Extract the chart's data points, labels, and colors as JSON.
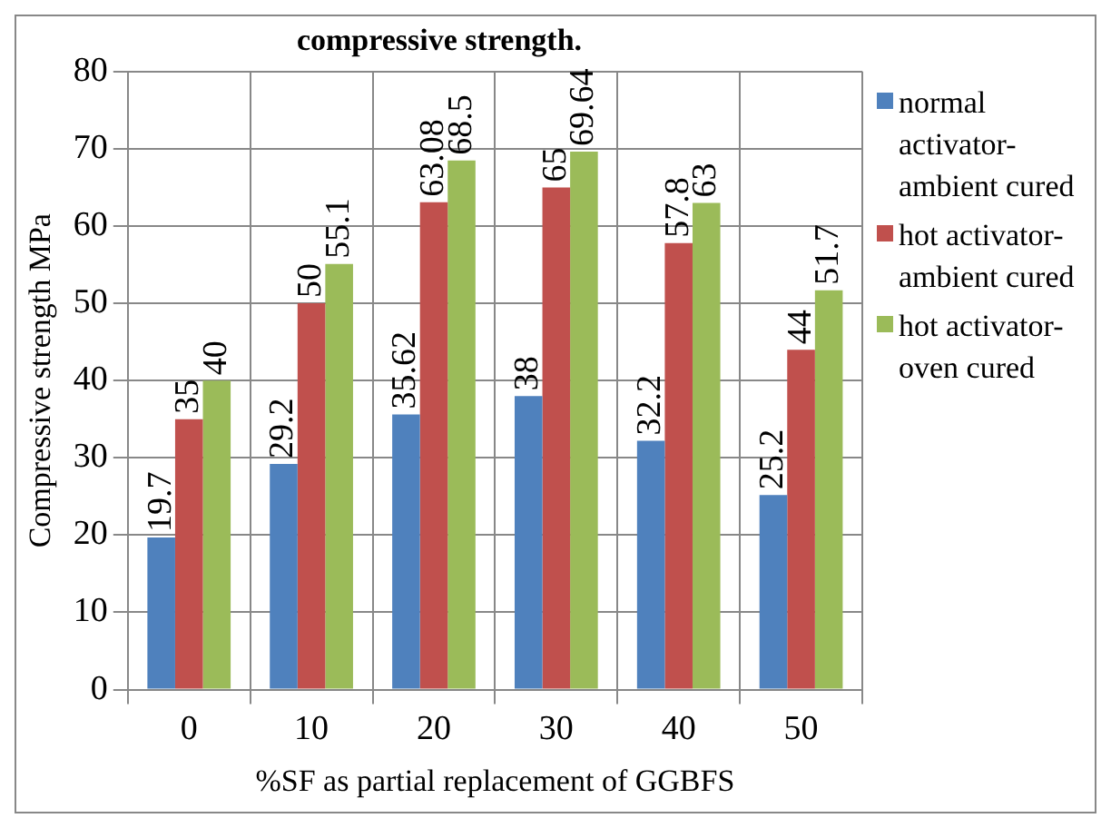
{
  "chart_data": {
    "type": "bar",
    "title": "compressive strength.",
    "xlabel": "%SF as partial replacement of GGBFS",
    "ylabel": "Compressive strength MPa",
    "categories": [
      "0",
      "10",
      "20",
      "30",
      "40",
      "50"
    ],
    "series": [
      {
        "name": "normal activator-ambient cured",
        "color": "#4f81bd",
        "values": [
          19.7,
          29.2,
          35.62,
          38,
          32.2,
          25.2
        ]
      },
      {
        "name": "hot activator-ambient cured",
        "color": "#c0504d",
        "values": [
          35,
          50,
          63.08,
          65,
          57.8,
          44
        ]
      },
      {
        "name": "hot activator-oven cured",
        "color": "#9bbb59",
        "values": [
          40,
          55.1,
          68.5,
          69.64,
          63,
          51.7
        ]
      }
    ],
    "ylim": [
      0,
      80
    ],
    "yticks": [
      0,
      10,
      20,
      30,
      40,
      50,
      60,
      70,
      80
    ],
    "grid": true,
    "legend": "right",
    "data_labels": true
  }
}
